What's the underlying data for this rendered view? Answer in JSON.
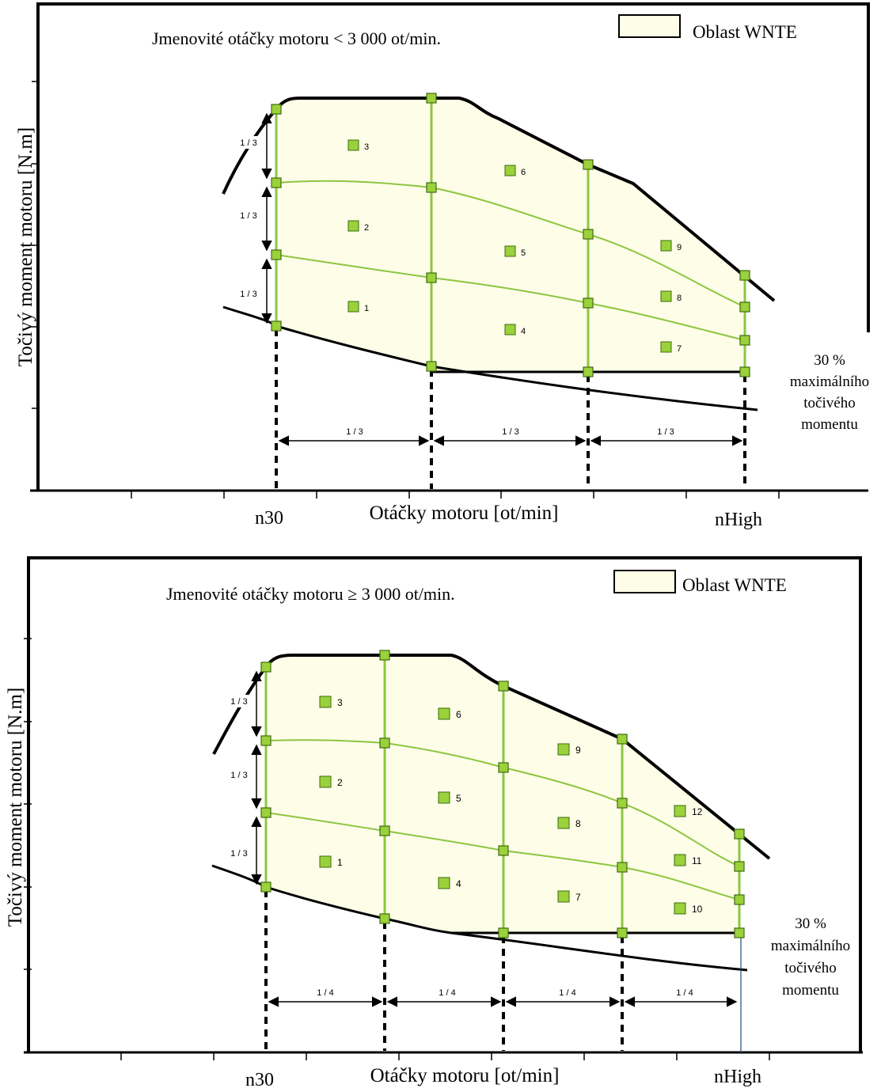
{
  "colors": {
    "region_fill": "#fdfde8",
    "grid_line": "#8dc63f",
    "node_fill": "#9bd13a",
    "node_stroke": "#3f6b12",
    "outline": "#000000"
  },
  "diagrams": [
    {
      "title": "Jmenovité otáčky motoru < 3 000 ot/min.",
      "legend_label": "Oblast WNTE",
      "ylabel": "Točivý moment motoru [N.m]",
      "xlabel": "Otáčky motoru [ot/min]",
      "x_start_label": "n30",
      "x_end_label": "nHigh",
      "torque_note": [
        "30 %",
        "maximálního",
        "točivého",
        "momentu"
      ],
      "vertical_fraction": "1 / 3",
      "speed_fraction": "1 / 3",
      "speed_division_count": 3,
      "cell_numbers": [
        "1",
        "2",
        "3",
        "4",
        "5",
        "6",
        "7",
        "8",
        "9"
      ]
    },
    {
      "title": "Jmenovité otáčky motoru ≥ 3 000 ot/min.",
      "legend_label": "Oblast WNTE",
      "ylabel": "Točivý moment motoru [N.m]",
      "xlabel": "Otáčky motoru [ot/min]",
      "x_start_label": "n30",
      "x_end_label": "nHigh",
      "torque_note": [
        "30 %",
        "maximálního",
        "točivého",
        "momentu"
      ],
      "vertical_fraction": "1 / 3",
      "speed_fraction": "1 / 4",
      "speed_division_count": 4,
      "cell_numbers": [
        "1",
        "2",
        "3",
        "4",
        "5",
        "6",
        "7",
        "8",
        "9",
        "10",
        "11",
        "12"
      ]
    }
  ]
}
